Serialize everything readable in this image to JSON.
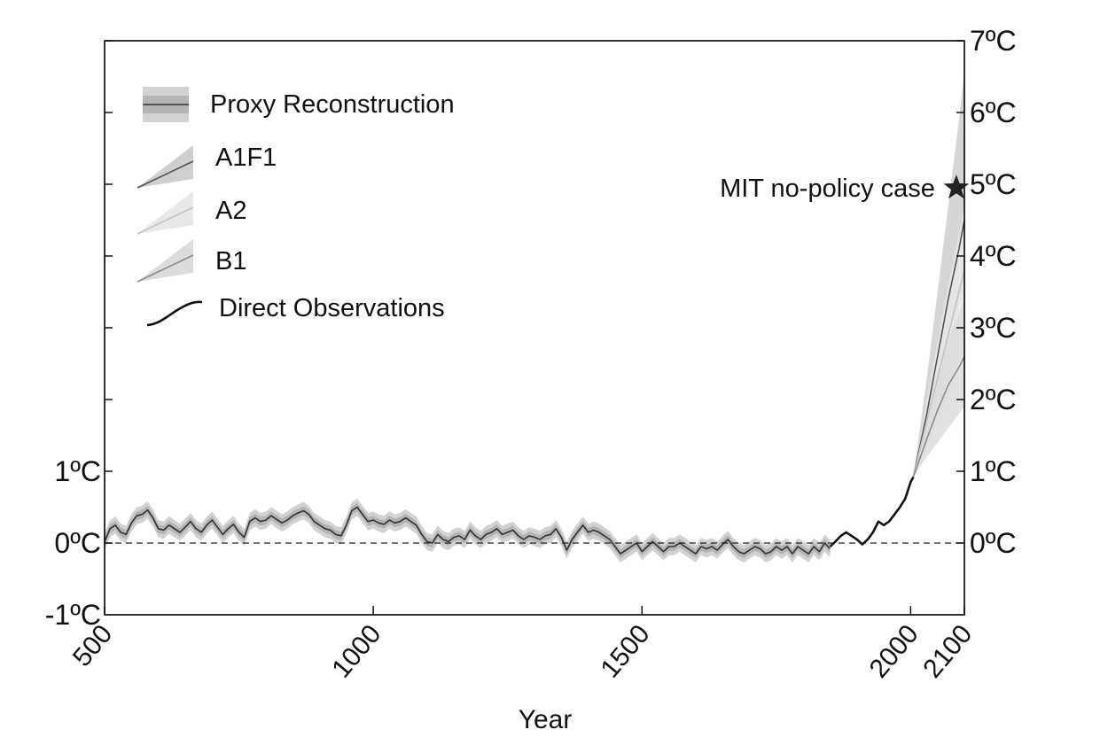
{
  "chart_data": {
    "type": "line",
    "title": "",
    "xlabel": "Year",
    "ylabel": "",
    "xlim": [
      500,
      2100
    ],
    "ylim": [
      -1,
      7
    ],
    "x_ticks": [
      500,
      1000,
      1500,
      2000,
      2100
    ],
    "x_tick_labels": [
      "500",
      "1000",
      "1500",
      "2000",
      "2100"
    ],
    "y_left_ticks": [
      -1,
      0,
      1
    ],
    "y_left_tick_labels": [
      "-1ºC",
      "0ºC",
      "1ºC"
    ],
    "y_right_ticks": [
      0,
      1,
      2,
      3,
      4,
      5,
      6,
      7
    ],
    "y_right_tick_labels": [
      "0ºC",
      "1ºC",
      "2ºC",
      "3ºC",
      "4ºC",
      "5ºC",
      "6ºC",
      "7ºC"
    ],
    "reference_line": {
      "y": 0,
      "style": "dashed"
    },
    "grid": false,
    "legend_position": "top-left",
    "legend": [
      {
        "key": "proxy",
        "label": "Proxy Reconstruction"
      },
      {
        "key": "a1f1",
        "label": "A1F1"
      },
      {
        "key": "a2",
        "label": "A2"
      },
      {
        "key": "b1",
        "label": "B1"
      },
      {
        "key": "obs",
        "label": "Direct Observations"
      }
    ],
    "series": [
      {
        "name": "Proxy Reconstruction",
        "color": "#333333",
        "band_colors": [
          "#d2d2d2",
          "#b4b4b4"
        ],
        "band_half_widths": [
          0.12,
          0.06
        ],
        "x": [
          500,
          510,
          520,
          530,
          540,
          550,
          560,
          570,
          580,
          590,
          600,
          610,
          620,
          630,
          640,
          650,
          660,
          670,
          680,
          690,
          700,
          710,
          720,
          730,
          740,
          750,
          760,
          770,
          780,
          790,
          800,
          810,
          820,
          830,
          840,
          850,
          860,
          870,
          880,
          890,
          900,
          910,
          920,
          930,
          940,
          950,
          960,
          970,
          980,
          990,
          1000,
          1010,
          1020,
          1030,
          1040,
          1050,
          1060,
          1070,
          1080,
          1090,
          1100,
          1110,
          1120,
          1130,
          1140,
          1150,
          1160,
          1170,
          1180,
          1190,
          1200,
          1210,
          1220,
          1230,
          1240,
          1250,
          1260,
          1270,
          1280,
          1290,
          1300,
          1310,
          1320,
          1330,
          1340,
          1350,
          1360,
          1370,
          1380,
          1390,
          1400,
          1410,
          1420,
          1430,
          1440,
          1450,
          1460,
          1470,
          1480,
          1490,
          1500,
          1510,
          1520,
          1530,
          1540,
          1550,
          1560,
          1570,
          1580,
          1590,
          1600,
          1610,
          1620,
          1630,
          1640,
          1650,
          1660,
          1670,
          1680,
          1690,
          1700,
          1710,
          1720,
          1730,
          1740,
          1750,
          1760,
          1770,
          1780,
          1790,
          1800,
          1810,
          1820,
          1830,
          1840,
          1850
        ],
        "y": [
          0.02,
          0.2,
          0.25,
          0.15,
          0.12,
          0.28,
          0.38,
          0.4,
          0.46,
          0.35,
          0.2,
          0.18,
          0.25,
          0.2,
          0.15,
          0.22,
          0.3,
          0.2,
          0.15,
          0.25,
          0.32,
          0.22,
          0.12,
          0.2,
          0.26,
          0.15,
          0.08,
          0.3,
          0.35,
          0.3,
          0.32,
          0.38,
          0.33,
          0.28,
          0.32,
          0.38,
          0.42,
          0.45,
          0.4,
          0.3,
          0.25,
          0.2,
          0.18,
          0.12,
          0.1,
          0.25,
          0.45,
          0.5,
          0.4,
          0.3,
          0.32,
          0.28,
          0.26,
          0.32,
          0.28,
          0.3,
          0.35,
          0.3,
          0.25,
          0.12,
          0.02,
          0.0,
          0.12,
          0.05,
          0.02,
          0.08,
          0.1,
          0.05,
          0.18,
          0.1,
          0.05,
          0.12,
          0.15,
          0.2,
          0.12,
          0.15,
          0.18,
          0.1,
          0.05,
          0.1,
          0.08,
          0.05,
          0.1,
          0.12,
          0.2,
          0.08,
          -0.1,
          0.05,
          0.15,
          0.25,
          0.15,
          0.18,
          0.15,
          0.1,
          0.05,
          -0.05,
          -0.15,
          -0.1,
          -0.05,
          0.0,
          -0.12,
          -0.05,
          0.02,
          -0.05,
          -0.12,
          -0.05,
          -0.05,
          0.0,
          -0.05,
          -0.1,
          -0.15,
          -0.05,
          -0.08,
          -0.05,
          -0.1,
          -0.02,
          0.05,
          -0.05,
          -0.12,
          -0.15,
          -0.1,
          -0.05,
          -0.08,
          -0.15,
          -0.12,
          -0.05,
          -0.1,
          -0.05,
          -0.15,
          -0.05,
          -0.1,
          -0.15,
          -0.05,
          -0.12,
          0.0,
          -0.08
        ]
      },
      {
        "name": "Direct Observations",
        "color": "#111111",
        "x": [
          1850,
          1860,
          1870,
          1880,
          1890,
          1900,
          1910,
          1920,
          1930,
          1940,
          1950,
          1960,
          1970,
          1980,
          1990,
          2000,
          2005
        ],
        "y": [
          -0.05,
          0.02,
          0.1,
          0.15,
          0.1,
          0.05,
          -0.02,
          0.05,
          0.15,
          0.3,
          0.25,
          0.3,
          0.4,
          0.5,
          0.62,
          0.85,
          0.92
        ]
      },
      {
        "name": "A1F1",
        "color": "#555555",
        "band_color": "#cfcfcf",
        "x": [
          2005,
          2030,
          2050,
          2070,
          2090,
          2100
        ],
        "y": [
          0.92,
          1.8,
          2.6,
          3.4,
          4.1,
          4.5
        ],
        "band_low": [
          0.92,
          1.4,
          2.0,
          2.7,
          3.3,
          3.6
        ],
        "band_high": [
          0.92,
          2.3,
          3.5,
          4.7,
          5.9,
          6.6
        ]
      },
      {
        "name": "A2",
        "color": "#c4c4c4",
        "band_color": "#e8e8e8",
        "x": [
          2005,
          2030,
          2050,
          2070,
          2090,
          2100
        ],
        "y": [
          0.92,
          1.7,
          2.3,
          2.9,
          3.5,
          3.8
        ],
        "band_low": [
          0.92,
          1.3,
          1.7,
          2.1,
          2.6,
          2.8
        ],
        "band_high": [
          0.92,
          2.0,
          2.8,
          3.6,
          4.3,
          4.7
        ]
      },
      {
        "name": "B1",
        "color": "#8c8c8c",
        "band_color": "#dcdcdc",
        "x": [
          2005,
          2030,
          2050,
          2070,
          2090,
          2100
        ],
        "y": [
          0.92,
          1.45,
          1.85,
          2.2,
          2.45,
          2.6
        ],
        "band_low": [
          0.92,
          1.2,
          1.4,
          1.6,
          1.8,
          1.9
        ],
        "band_high": [
          0.92,
          1.7,
          2.3,
          2.8,
          3.2,
          3.4
        ]
      }
    ],
    "annotation": {
      "label": "MIT no-policy case",
      "x": 2085,
      "y": 4.95,
      "marker": "star",
      "color": "#222222"
    }
  }
}
